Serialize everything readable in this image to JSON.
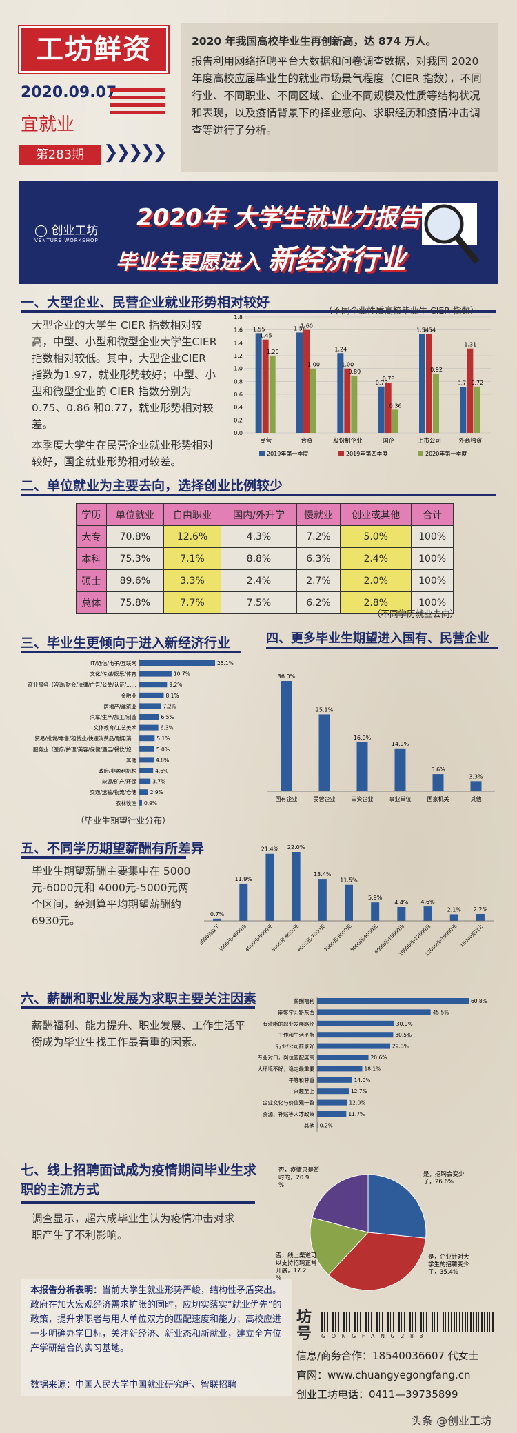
{
  "header": {
    "logo": "工坊鲜资",
    "date": "2020.09.07",
    "tag": "宜就业",
    "issue": "第283期"
  },
  "intro": {
    "lead": "2020 年我国高校毕业生再创新高，达 874 万人。",
    "body": "报告利用网络招聘平台大数据和问卷调查数据，对我国 2020年度高校应届毕业生的就业市场景气程度（CIER 指数），不同行业、不同职业、不同区域、企业不同规模及性质等结构状况和表现，以及疫情背景下的择业意向、求职经历和疫情冲击调查等进行了分析。"
  },
  "banner": {
    "brand": "创业工坊",
    "brand_en": "VENTURE WORKSHOP",
    "title": "2020年 大学生就业力报告",
    "sub1": "毕业生更愿进入 ",
    "sub2": "新经济行业"
  },
  "s1": {
    "title": "一、大型企业、民营企业就业形势相对较好",
    "p1": "大型企业的大学生 CIER 指数相对较高，中型、小型和微型企业大学生CIER 指数相对较低。其中，大型企业CIER 指数为1.97，就业形势较好；中型、小型和微型企业的 CIER 指数分别为0.75、0.86 和0.77，就业形势相对较差。",
    "p2": "本季度大学生在民营企业就业形势相对较好，国企就业形势相对较差。",
    "note": "（不同企业性质高校毕业生 CIER 指数）"
  },
  "s2": {
    "title": "二、单位就业为主要去向，选择创业比例较少",
    "note": "（不同学历就业去向）",
    "headers": [
      "学历",
      "单位就业",
      "自由职业",
      "国内/外升学",
      "慢就业",
      "创业或其他",
      "合计"
    ],
    "rows": [
      [
        "大专",
        "70.8%",
        "12.6%",
        "4.3%",
        "7.2%",
        "5.0%",
        "100%"
      ],
      [
        "本科",
        "75.3%",
        "7.1%",
        "8.8%",
        "6.3%",
        "2.4%",
        "100%"
      ],
      [
        "硕士",
        "89.6%",
        "3.3%",
        "2.4%",
        "2.7%",
        "2.0%",
        "100%"
      ],
      [
        "总体",
        "75.8%",
        "7.7%",
        "7.5%",
        "6.2%",
        "2.8%",
        "100%"
      ]
    ]
  },
  "s3": {
    "title": "三、毕业生更倾向于进入新经济行业",
    "note": "（毕业生期望行业分布）"
  },
  "s4": {
    "title": "四、更多毕业生期望进入国有、民营企业"
  },
  "s5": {
    "title": "五、不同学历期望薪酬有所差异",
    "p": "毕业生期望薪酬主要集中在 5000 元-6000元和 4000元-5000元两个区间，经测算平均期望薪酬约6930元。"
  },
  "s6": {
    "title": "六、薪酬和职业发展为求职主要关注因素",
    "p": "薪酬福利、能力提升、职业发展、工作生活平衡成为毕业生找工作最看重的因素。"
  },
  "s7": {
    "title": "七、线上招聘面试成为疫情期间毕业生求职的主流方式",
    "p": "调查显示，超六成毕业生认为疫情冲击对求职产生了不利影响。"
  },
  "summary": {
    "label": "本报告分析表明：",
    "body": "当前大学生就业形势严峻，结构性矛盾突出。政府在加大宏观经济需求扩张的同时，应切实落实“就业优先”的政策，提升求职者与用人单位双方的匹配速度和能力；高校应进一步明确办学目标，关注新经济、新业态和新就业，建立全方位产学研结合的实习基地。",
    "source": "数据来源：中国人民大学中国就业研究所、智联招聘"
  },
  "footer": {
    "brand": "坊号",
    "letters": "G O N G F A N G 2 8 3",
    "contact": "信息/商务合作：18540036607 代女士",
    "site": "官网：www.chuangyegongfang.cn",
    "phone": "创业工坊电话：0411—39735899",
    "watermark": "头条 @创业工坊"
  },
  "colors": {
    "navy": "#1d2b6b",
    "red": "#c8262c",
    "bar_blue": "#2e5c9a",
    "bar_red": "#b8302f",
    "bar_green": "#8aa44a"
  },
  "chart_data": [
    {
      "type": "bar",
      "categories": [
        "民营",
        "合资",
        "股份制企业",
        "国企",
        "上市公司",
        "外商独资"
      ],
      "series": [
        {
          "name": "2019年第一季度",
          "values": [
            1.55,
            1.56,
            1.24,
            0.72,
            1.54,
            0.71
          ]
        },
        {
          "name": "2019年第四季度",
          "values": [
            1.45,
            1.6,
            1.0,
            0.78,
            1.54,
            1.31
          ]
        },
        {
          "name": "2020年第一季度",
          "values": [
            1.2,
            1.0,
            0.89,
            0.36,
            0.92,
            0.72
          ]
        }
      ],
      "ylim": [
        0,
        1.8
      ],
      "yticks": [
        0,
        0.2,
        0.4,
        0.6,
        0.8,
        1.0,
        1.2,
        1.4,
        1.6,
        1.8
      ],
      "legend": "bottom"
    },
    {
      "type": "bar",
      "orientation": "horizontal",
      "categories": [
        "IT/通信/电子/互联网",
        "文化/传媒/娱乐/体育",
        "商业服务（咨询/财会/法律/广告/公关/认证/……",
        "金融业",
        "房地产/建筑业",
        "汽车/生产/加工/制造",
        "文体教育/工艺美术",
        "贸易/批发/零售/租赁业/快速消费品/耐用消…",
        "服务业（医疗/护理/美容/保健/酒店/餐饮/旅…",
        "其他",
        "政府/非盈利机构",
        "能源/矿产/环保",
        "交通/运输/物流/仓储",
        "农林牧渔"
      ],
      "values": [
        25.1,
        10.7,
        9.2,
        8.1,
        7.2,
        6.5,
        6.3,
        5.1,
        5.0,
        4.8,
        4.6,
        3.7,
        2.9,
        0.9
      ]
    },
    {
      "type": "bar",
      "categories": [
        "国有企业",
        "民营企业",
        "三资企业",
        "事业单位",
        "国家机关",
        "其他"
      ],
      "values": [
        36.0,
        25.1,
        16.0,
        14.0,
        5.6,
        3.3
      ]
    },
    {
      "type": "bar",
      "categories": [
        "3000元以下",
        "3000元-4000元",
        "4000元-5000元",
        "5000元-6000元",
        "6000元-7000元",
        "7000元-8000元",
        "8000元-9000元",
        "9000元-10000元",
        "10000元-12000元",
        "12000元-15000元",
        "15000元以上"
      ],
      "values": [
        0.7,
        11.9,
        21.4,
        22.0,
        13.4,
        11.5,
        5.9,
        4.4,
        4.6,
        2.1,
        2.2
      ]
    },
    {
      "type": "bar",
      "orientation": "horizontal",
      "categories": [
        "薪酬福利",
        "能够学习新东西",
        "有清晰的职业发展路径",
        "工作和生活平衡",
        "行业/公司前景好",
        "专业对口，岗位匹配度高",
        "大环境不好，稳定最重要",
        "平等和尊重",
        "兴趣至上",
        "企业文化与价值观一致",
        "资源、补贴等人才政策",
        "其他"
      ],
      "values": [
        60.8,
        45.5,
        30.9,
        30.5,
        29.3,
        20.6,
        18.1,
        14.0,
        12.7,
        12.0,
        11.7,
        0.2
      ]
    },
    {
      "type": "pie",
      "labels": [
        "是，招聘会变少了",
        "是，企业针对大学生的招聘变少了",
        "否，线上渠道可以支持招聘正常开展",
        "否，疫情只是暂时的"
      ],
      "values": [
        26.6,
        35.4,
        17.2,
        20.9
      ],
      "colors": [
        "#2e5c9a",
        "#b8302f",
        "#8aa44a",
        "#5b3f86"
      ]
    }
  ]
}
